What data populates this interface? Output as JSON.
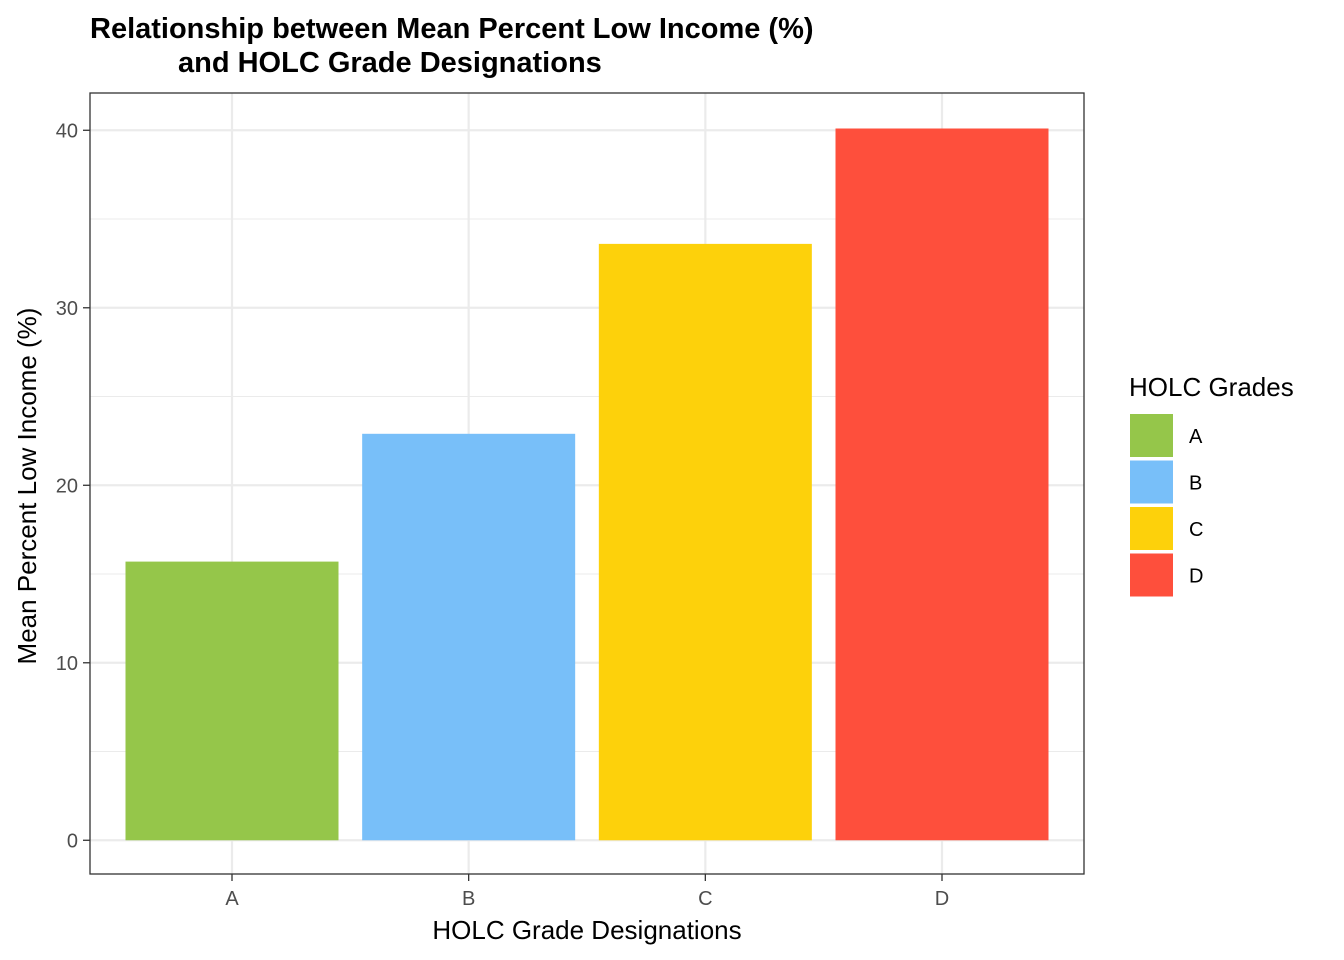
{
  "chart_data": {
    "type": "bar",
    "title": [
      "Relationship between Mean Percent Low Income (%)",
      "and HOLC Grade Designations"
    ],
    "xlabel": "HOLC Grade Designations",
    "ylabel": "Mean Percent Low Income (%)",
    "categories": [
      "A",
      "B",
      "C",
      "D"
    ],
    "values": [
      15.7,
      22.9,
      33.6,
      40.1
    ],
    "ylim": [
      -1.9,
      42.1
    ],
    "yticks": [
      0,
      10,
      20,
      30,
      40
    ],
    "grid": true,
    "legend": {
      "title": "HOLC Grades",
      "placement": "right",
      "entries": [
        "A",
        "B",
        "C",
        "D"
      ]
    },
    "colors": [
      "#95c64a",
      "#78bff9",
      "#fdd10b",
      "#fe4f3c"
    ]
  }
}
